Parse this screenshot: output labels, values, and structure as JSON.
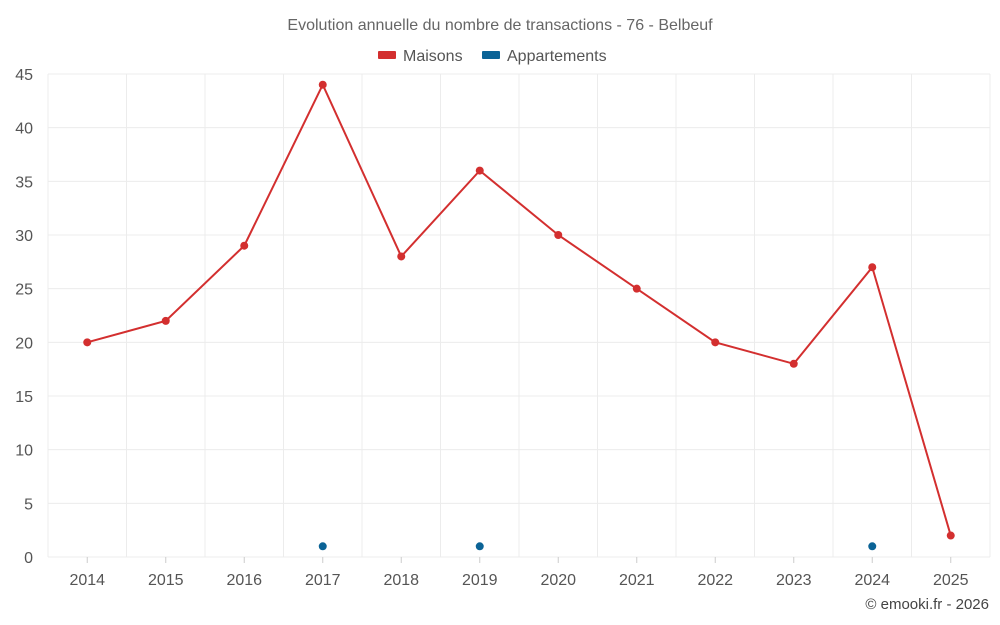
{
  "chart_data": {
    "type": "line",
    "title": "Evolution annuelle du nombre de transactions - 76 - Belbeuf",
    "categories": [
      "2014",
      "2015",
      "2016",
      "2017",
      "2018",
      "2019",
      "2020",
      "2021",
      "2022",
      "2023",
      "2024",
      "2025"
    ],
    "series": [
      {
        "name": "Maisons",
        "color": "#d32f2f",
        "values": [
          20,
          22,
          29,
          44,
          28,
          36,
          30,
          25,
          20,
          18,
          27,
          2
        ]
      },
      {
        "name": "Appartements",
        "color": "#0b6396",
        "values": [
          null,
          null,
          null,
          1,
          null,
          1,
          null,
          null,
          null,
          null,
          1,
          null
        ]
      }
    ],
    "ylim": [
      0,
      45
    ],
    "yticks": [
      0,
      5,
      10,
      15,
      20,
      25,
      30,
      35,
      40,
      45
    ],
    "xlabel": "",
    "ylabel": "",
    "grid": true,
    "legend": "top-center"
  },
  "credit": "© emooki.fr - 2026"
}
